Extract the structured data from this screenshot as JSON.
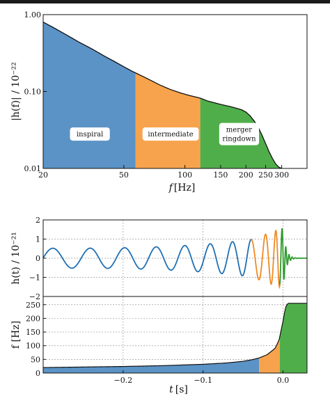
{
  "chart_data": [
    {
      "type": "area",
      "xscale": "log",
      "yscale": "log",
      "xlabel_var": "f",
      "xlabel_unit": "[Hz]",
      "ylabel": "|h(f)| / 10⁻²²",
      "xlim": [
        20,
        400
      ],
      "ylim": [
        0.01,
        1.0
      ],
      "xticks": [
        {
          "value": 20,
          "label": "20"
        },
        {
          "value": 50,
          "label": "50"
        },
        {
          "value": 100,
          "label": "100"
        },
        {
          "value": 150,
          "label": "150"
        },
        {
          "value": 200,
          "label": "200"
        },
        {
          "value": 250,
          "label": "250"
        },
        {
          "value": 300,
          "label": "300"
        }
      ],
      "yticks": [
        {
          "value": 1.0,
          "label": "1.00"
        },
        {
          "value": 0.1,
          "label": "0.10"
        },
        {
          "value": 0.01,
          "label": "0.01"
        }
      ],
      "curve": {
        "f": [
          20,
          25,
          30,
          35,
          40,
          45,
          50,
          55,
          57,
          65,
          75,
          85,
          95,
          105,
          115,
          119,
          130,
          150,
          170,
          190,
          200,
          210,
          220,
          230,
          240,
          250,
          260,
          270,
          280,
          290,
          300
        ],
        "h": [
          0.8,
          0.58,
          0.44,
          0.355,
          0.29,
          0.245,
          0.21,
          0.183,
          0.175,
          0.148,
          0.122,
          0.106,
          0.096,
          0.089,
          0.084,
          0.082,
          0.075,
          0.068,
          0.063,
          0.058,
          0.054,
          0.048,
          0.041,
          0.034,
          0.027,
          0.021,
          0.0165,
          0.0135,
          0.0115,
          0.0104,
          0.01
        ]
      },
      "regions": [
        {
          "name": "inspiral",
          "from": 20,
          "to": 57,
          "color": "#5b93c6"
        },
        {
          "name": "intermediate",
          "from": 57,
          "to": 119,
          "color": "#f7a34d"
        },
        {
          "name": "merger\nringdown",
          "from": 119,
          "to": 300,
          "color": "#4fae4a"
        }
      ]
    },
    {
      "type": "line",
      "xlabel_var": "t",
      "xlabel_unit": "[s]",
      "ylabel": "h(t) / 10⁻²¹",
      "xlim": [
        -0.3,
        0.03
      ],
      "ylim": [
        -2,
        2
      ],
      "xticks": [
        {
          "value": -0.2,
          "label": "−0.2"
        },
        {
          "value": -0.1,
          "label": "−0.1"
        },
        {
          "value": 0.0,
          "label": "0.0"
        }
      ],
      "yticks": [
        {
          "value": -2,
          "label": "−2"
        },
        {
          "value": -1,
          "label": "−1"
        },
        {
          "value": 0,
          "label": "0"
        },
        {
          "value": 1,
          "label": "1"
        },
        {
          "value": 2,
          "label": "2"
        }
      ],
      "segments": [
        {
          "name": "inspiral",
          "from": -0.3,
          "to": -0.04,
          "color": "#1f6fb4"
        },
        {
          "name": "intermediate",
          "from": -0.04,
          "to": -0.004,
          "color": "#f08a24"
        },
        {
          "name": "merger-ringdown",
          "from": -0.004,
          "to": 0.03,
          "color": "#2e9b2e"
        }
      ]
    },
    {
      "type": "area",
      "xlabel_var": "t",
      "xlabel_unit": "[s]",
      "ylabel": "f [Hz]",
      "xlim": [
        -0.3,
        0.03
      ],
      "ylim": [
        0,
        280
      ],
      "xticks": [
        {
          "value": -0.2,
          "label": "−0.2"
        },
        {
          "value": -0.1,
          "label": "−0.1"
        },
        {
          "value": 0.0,
          "label": "0.0"
        }
      ],
      "yticks": [
        {
          "value": 0,
          "label": "0"
        },
        {
          "value": 50,
          "label": "50"
        },
        {
          "value": 100,
          "label": "100"
        },
        {
          "value": 150,
          "label": "150"
        },
        {
          "value": 200,
          "label": "200"
        },
        {
          "value": 250,
          "label": "250"
        }
      ],
      "curve": {
        "t": [
          -0.3,
          -0.25,
          -0.2,
          -0.15,
          -0.1,
          -0.07,
          -0.05,
          -0.04,
          -0.03,
          -0.02,
          -0.01,
          -0.005,
          0.0,
          0.003,
          0.006,
          0.03
        ],
        "f": [
          20,
          22,
          24,
          27,
          32,
          37,
          43,
          48,
          55,
          67,
          90,
          120,
          190,
          240,
          255,
          255
        ]
      },
      "regions": [
        {
          "name": "inspiral",
          "from": -0.3,
          "to": -0.03,
          "color": "#5b93c6"
        },
        {
          "name": "intermediate",
          "from": -0.03,
          "to": -0.004,
          "color": "#f7a34d"
        },
        {
          "name": "merger-ringdown",
          "from": -0.004,
          "to": 0.03,
          "color": "#4fae4a"
        }
      ]
    }
  ]
}
